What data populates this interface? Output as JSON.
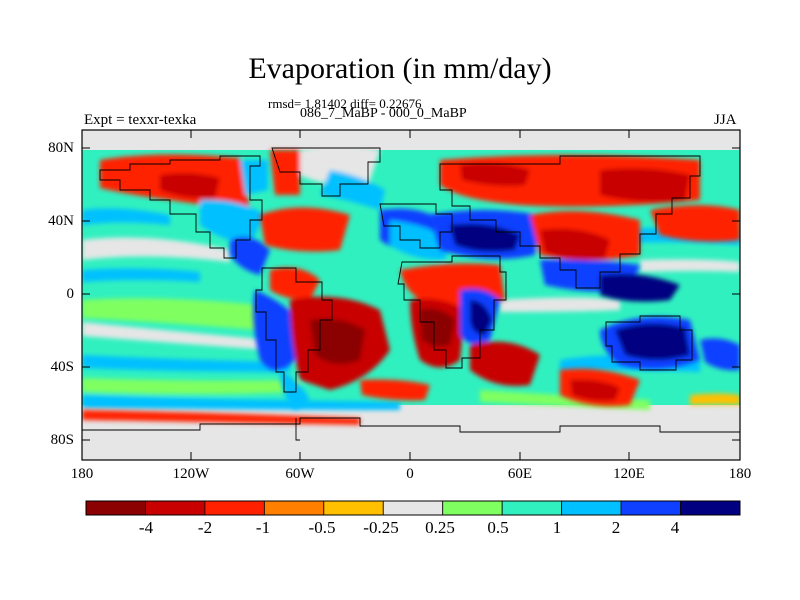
{
  "title": "Evaporation (in mm/day)",
  "stats_line": "rmsd= 1.81402 diff= 0.22676",
  "subtitle": "086_7_MaBP - 000_0_MaBP",
  "left_label": "Expt = texxr-texka",
  "right_label": "JJA",
  "y_ticks": [
    "80N",
    "40N",
    "0",
    "40S",
    "80S"
  ],
  "x_ticks": [
    "180",
    "120W",
    "60W",
    "0",
    "60E",
    "120E",
    "180"
  ],
  "colorbar": {
    "labels": [
      "-4",
      "-2",
      "-1",
      "-0.5",
      "-0.25",
      "0.25",
      "0.5",
      "1",
      "2",
      "4"
    ],
    "colors": [
      "#8b0000",
      "#c80000",
      "#ff2000",
      "#ff8000",
      "#ffc000",
      "#e6e6e6",
      "#80ff60",
      "#30f0c0",
      "#00c0ff",
      "#1040ff",
      "#000080"
    ]
  },
  "map_colors": {
    "land_base": "#e6e6e6",
    "ocean_base": "#30f0c0"
  }
}
